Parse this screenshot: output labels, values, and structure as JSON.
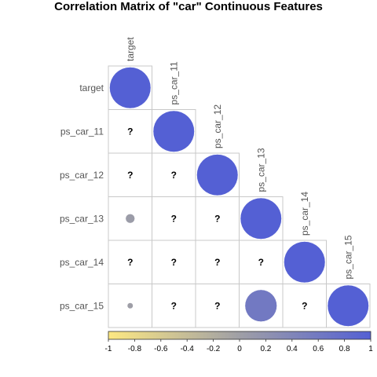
{
  "chart_data": {
    "type": "heatmap",
    "title": "Correlation Matrix of \"car\" Continuous Features",
    "variables": [
      "target",
      "ps_car_11",
      "ps_car_12",
      "ps_car_13",
      "ps_car_14",
      "ps_car_15"
    ],
    "lower_triangle_values": [
      [
        1.0,
        null,
        null,
        null,
        null,
        null
      ],
      [
        null,
        1.0,
        null,
        null,
        null,
        null
      ],
      [
        null,
        null,
        1.0,
        null,
        null,
        null
      ],
      [
        0.05,
        null,
        null,
        1.0,
        null,
        null
      ],
      [
        null,
        null,
        null,
        null,
        1.0,
        null
      ],
      [
        0.02,
        null,
        null,
        0.6,
        null,
        1.0
      ]
    ],
    "missing_label": "?",
    "colorbar": {
      "range": [
        -1,
        1
      ],
      "ticks": [
        "-1",
        "-0.8",
        "-0.6",
        "-0.4",
        "-0.2",
        "0",
        "0.2",
        "0.4",
        "0.6",
        "0.8",
        "1"
      ],
      "colors": {
        "low": "#FDE882",
        "mid": "#9F9FA6",
        "high": "#5460D4"
      }
    },
    "grid": true
  }
}
